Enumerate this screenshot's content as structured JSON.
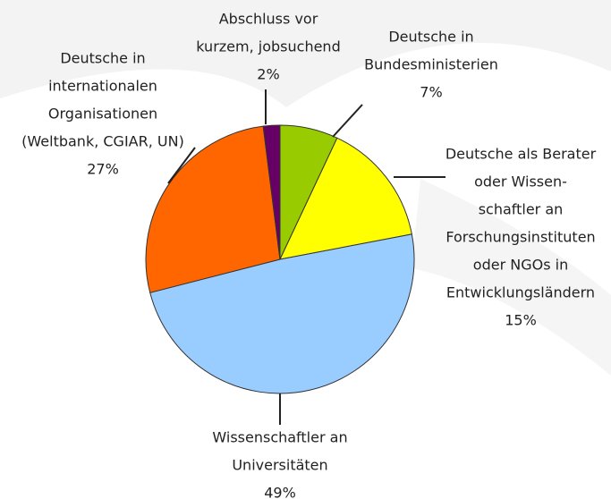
{
  "chart_data": {
    "type": "pie",
    "categories": [
      [
        "Deutsche in",
        "Bundesministerien"
      ],
      [
        "Deutsche als Berater",
        "oder Wissen-",
        "schaftler an",
        "Forschungsinstituten",
        "oder NGOs in",
        "Entwicklungsländern"
      ],
      [
        "Wissenschaftler an",
        "Universitäten"
      ],
      [
        "Deutsche in",
        "internationalen",
        "Organisationen",
        "(Weltbank, CGIAR, UN)"
      ],
      [
        "Abschluss vor",
        "kurzem, jobsuchend"
      ]
    ],
    "values": [
      7,
      15,
      49,
      27,
      2
    ],
    "value_labels": [
      "7%",
      "15%",
      "49%",
      "27%",
      "2%"
    ],
    "colors": [
      "#99cc00",
      "#ffff00",
      "#99ccff",
      "#ff6600",
      "#660066"
    ]
  }
}
